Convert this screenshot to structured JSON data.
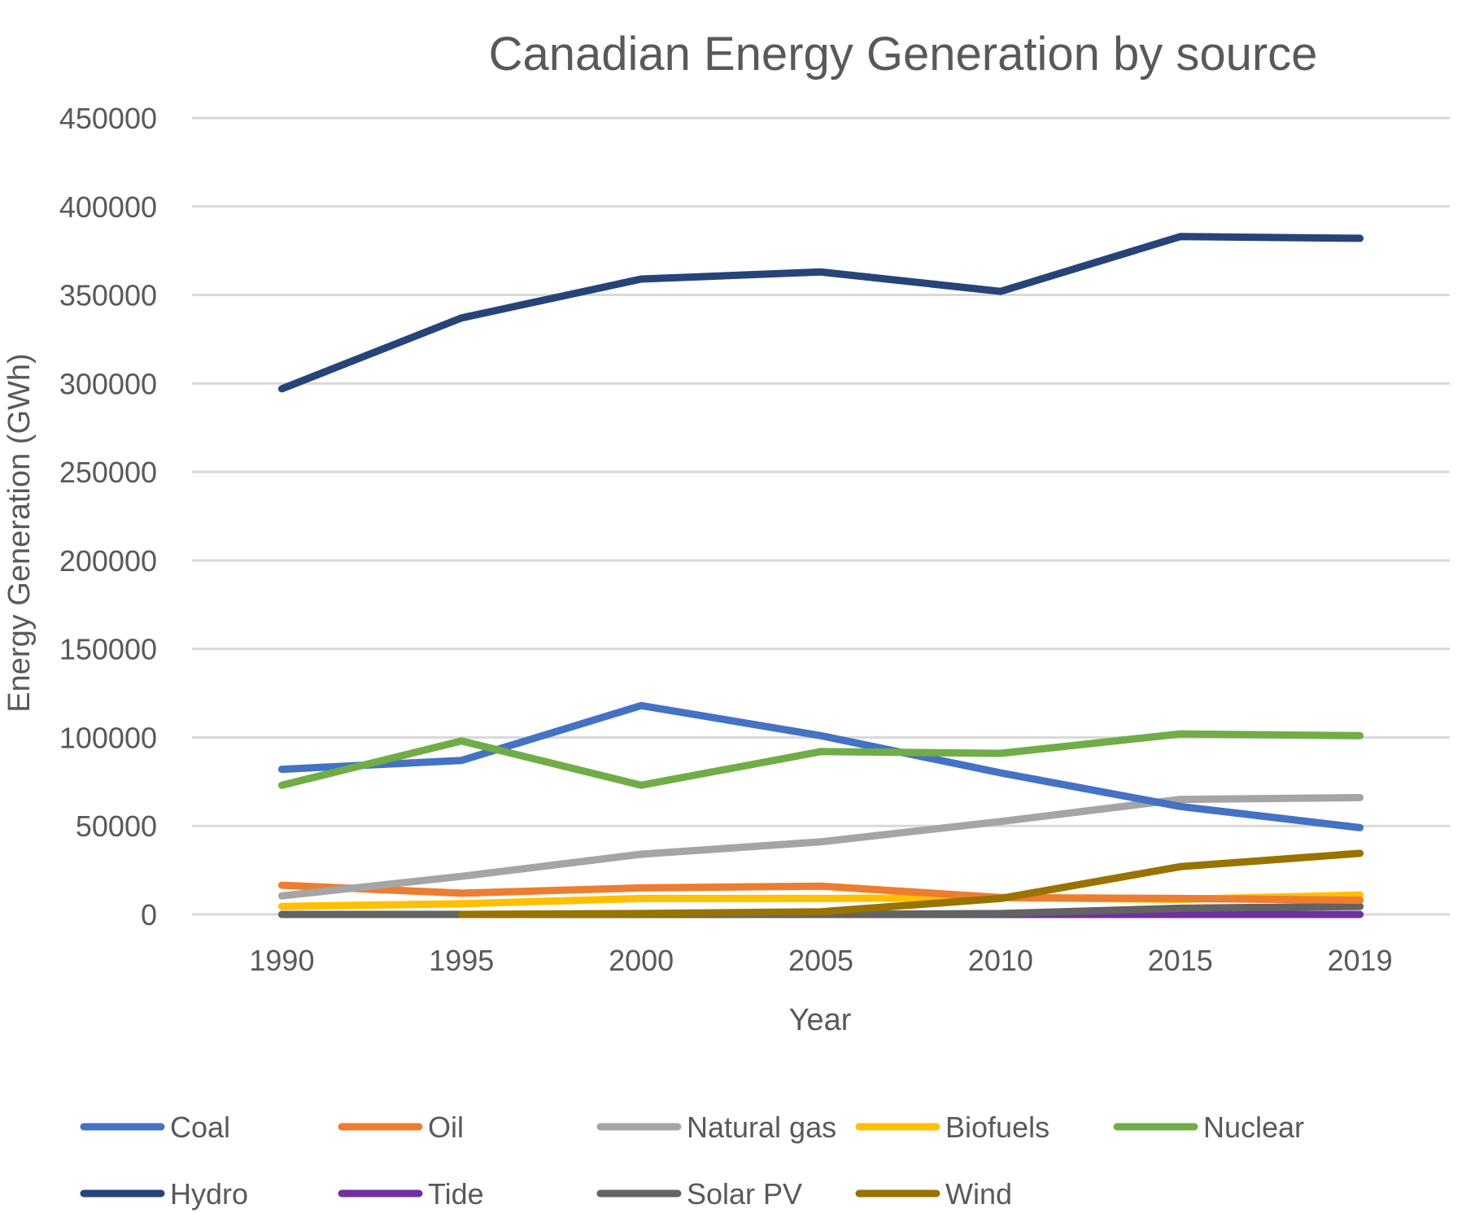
{
  "chart_data": {
    "type": "line",
    "title": "Canadian Energy Generation by source",
    "xlabel": "Year",
    "ylabel": "Energy Generation (GWh)",
    "ylim": [
      0,
      450000
    ],
    "yticks": [
      0,
      50000,
      100000,
      150000,
      200000,
      250000,
      300000,
      350000,
      400000,
      450000
    ],
    "categories": [
      "1990",
      "1995",
      "2000",
      "2005",
      "2010",
      "2015",
      "2019"
    ],
    "grid": true,
    "legend_position": "bottom",
    "series": [
      {
        "name": "Coal",
        "color": "#4472c4",
        "values": [
          82000,
          87000,
          118000,
          101000,
          80000,
          61000,
          49000
        ]
      },
      {
        "name": "Oil",
        "color": "#ed7d31",
        "values": [
          16500,
          12000,
          15000,
          16000,
          9500,
          9000,
          8000
        ]
      },
      {
        "name": "Natural gas",
        "color": "#a5a5a5",
        "values": [
          10500,
          21500,
          34000,
          41000,
          52500,
          65000,
          66000
        ]
      },
      {
        "name": "Biofuels",
        "color": "#ffc000",
        "values": [
          4500,
          6000,
          9000,
          9000,
          9500,
          8500,
          11000
        ]
      },
      {
        "name": "Nuclear",
        "color": "#70ad47",
        "values": [
          73000,
          98000,
          73000,
          92000,
          91000,
          102000,
          101000
        ]
      },
      {
        "name": "Hydro",
        "color": "#264478",
        "values": [
          297000,
          337000,
          359000,
          363000,
          352000,
          383000,
          382000
        ]
      },
      {
        "name": "Tide",
        "color": "#7030a0",
        "values": [
          0,
          0,
          0,
          0,
          0,
          0,
          0
        ]
      },
      {
        "name": "Solar PV",
        "color": "#636363",
        "values": [
          0,
          0,
          0,
          0,
          500,
          3500,
          4500
        ]
      },
      {
        "name": "Wind",
        "color": "#997300",
        "values": [
          null,
          0,
          500,
          1500,
          9000,
          27000,
          34500
        ]
      }
    ]
  }
}
